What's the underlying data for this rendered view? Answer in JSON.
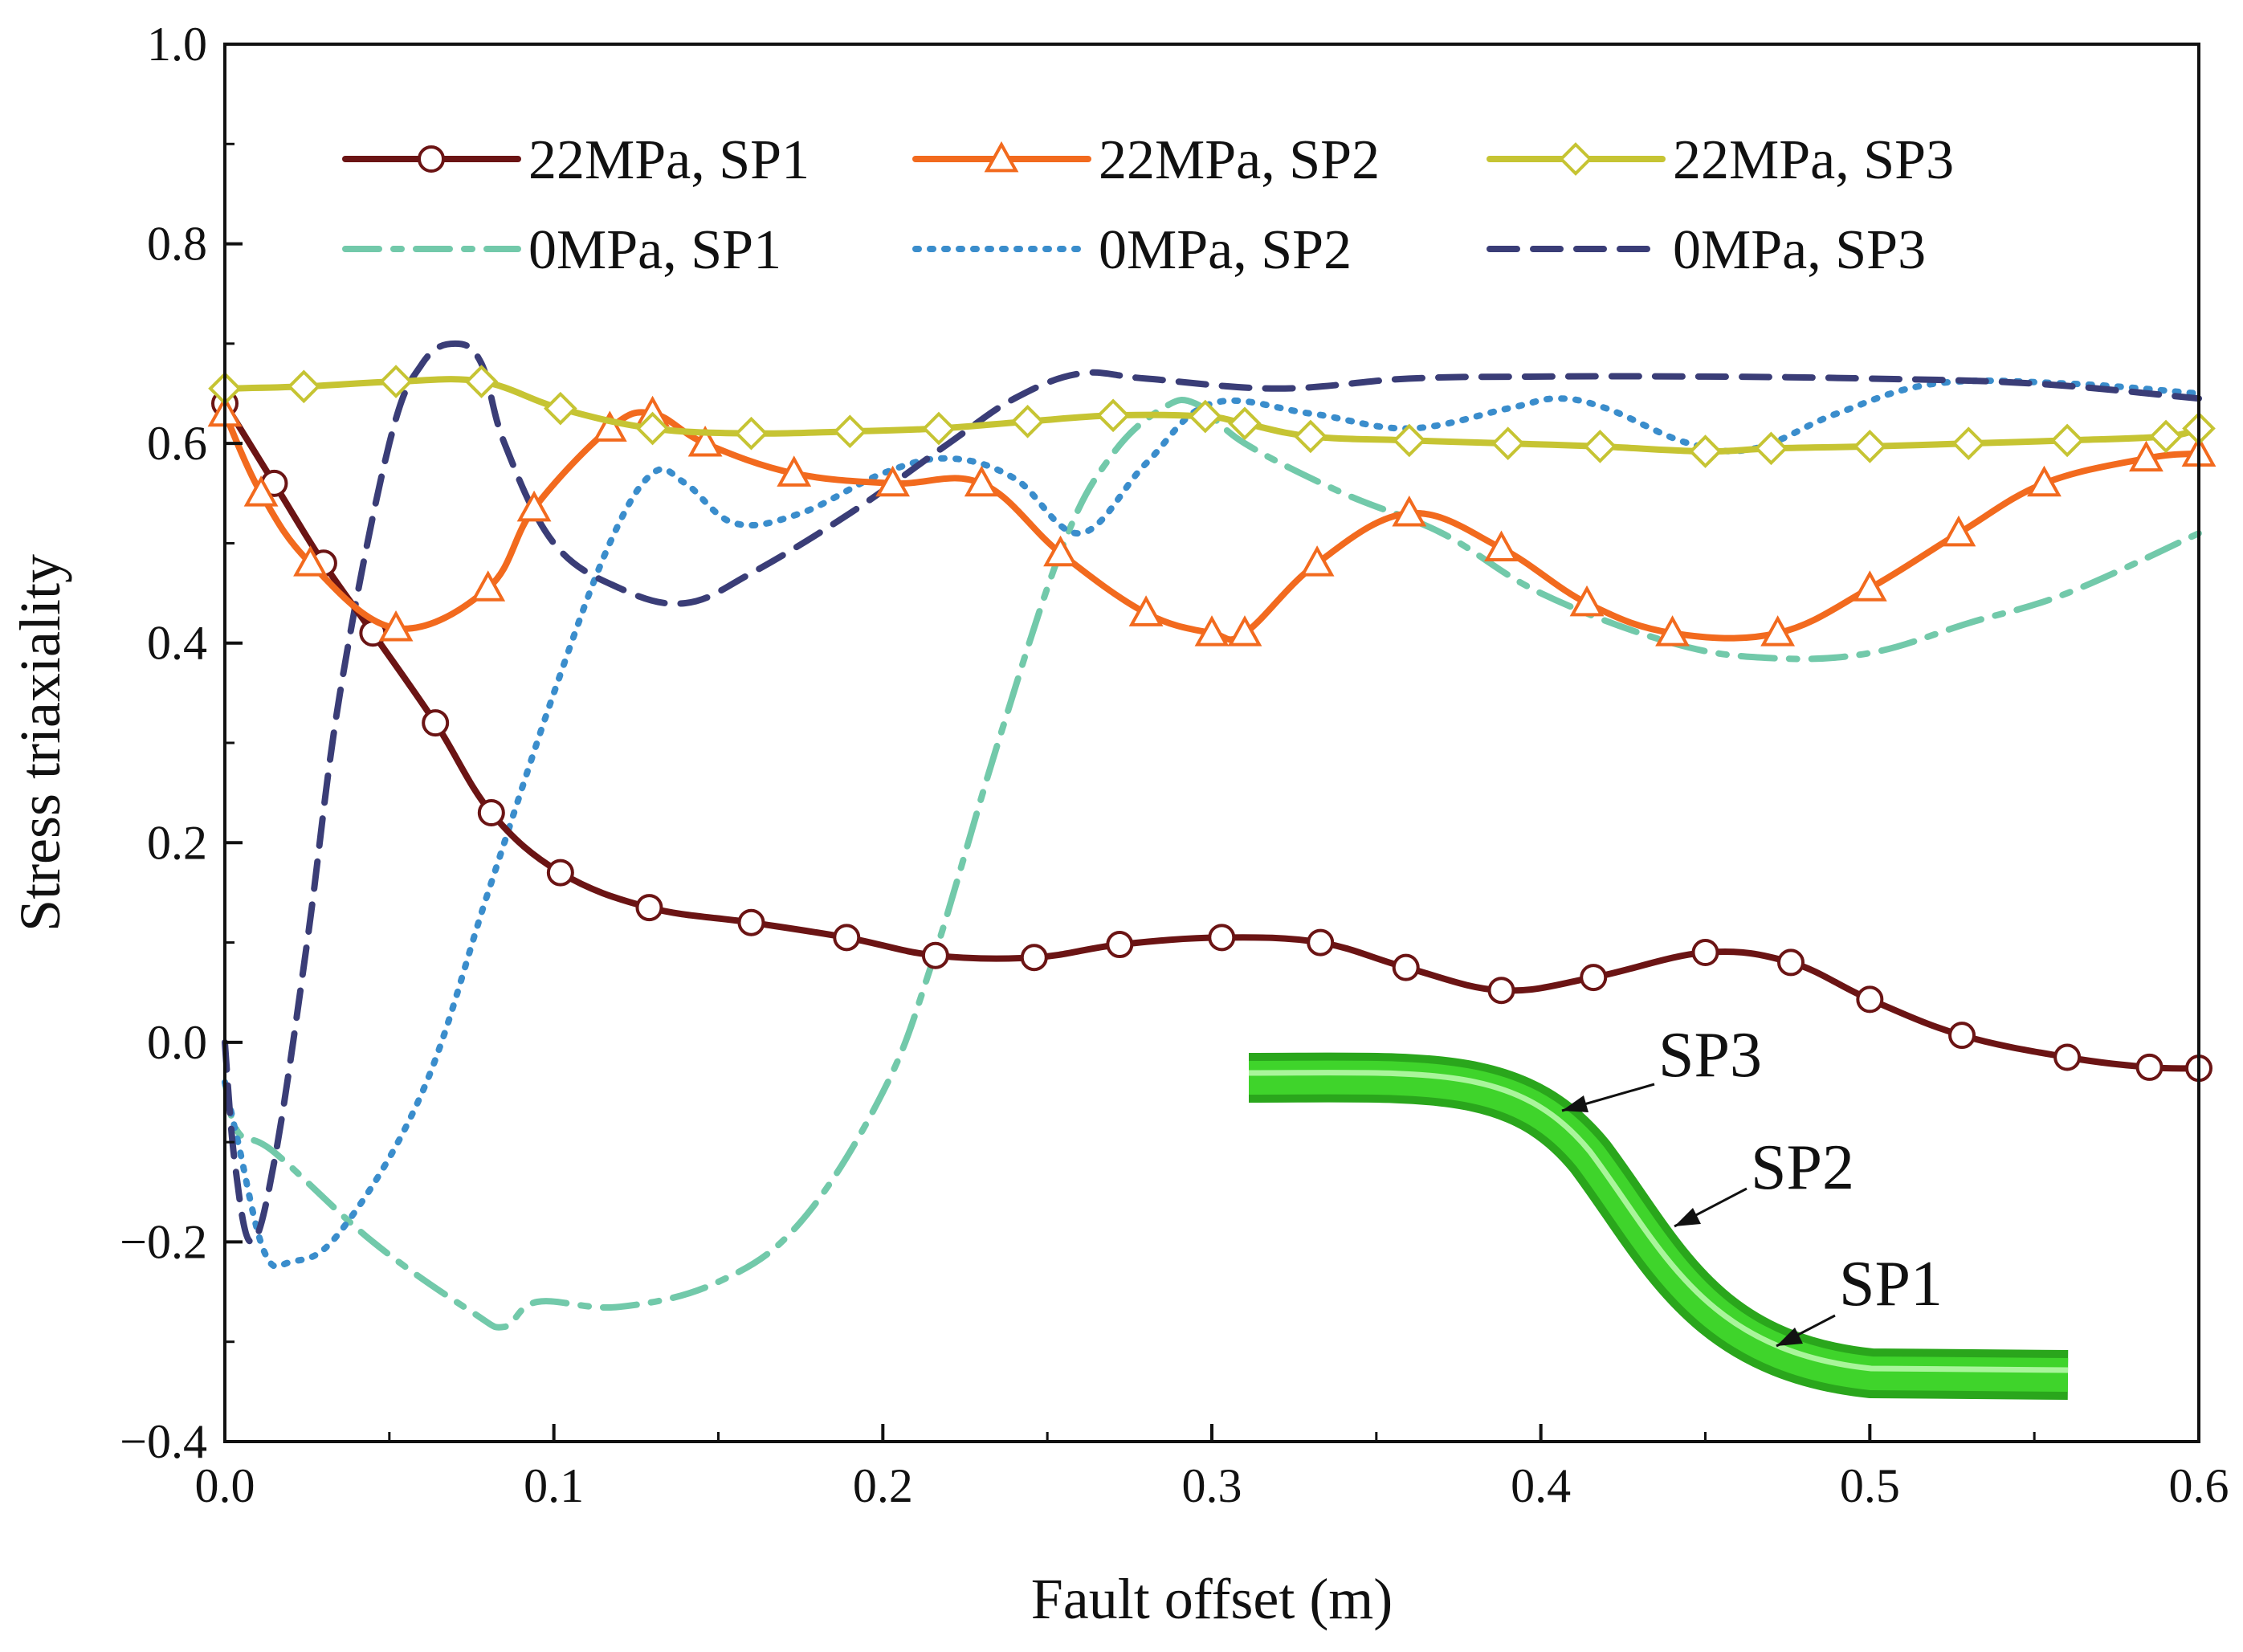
{
  "chart_data": {
    "type": "line",
    "xlabel": "Fault offset (m)",
    "ylabel": "Stress triaxiality",
    "xlim": [
      0.0,
      0.6
    ],
    "ylim": [
      -0.4,
      1.0
    ],
    "xticks": [
      "0.0",
      "0.1",
      "0.2",
      "0.3",
      "0.4",
      "0.5",
      "0.6"
    ],
    "yticks": [
      "−0.4",
      "−0.2",
      "0.0",
      "0.2",
      "0.4",
      "0.6",
      "0.8",
      "1.0"
    ],
    "grid": false,
    "legend_position": "top",
    "series": [
      {
        "name": "22MPa, SP1",
        "color": "#6b1414",
        "style": "solid",
        "marker": "circle",
        "x": [
          0.0,
          0.015,
          0.03,
          0.045,
          0.064,
          0.081,
          0.102,
          0.129,
          0.16,
          0.189,
          0.216,
          0.246,
          0.272,
          0.303,
          0.333,
          0.359,
          0.388,
          0.416,
          0.45,
          0.476,
          0.5,
          0.528,
          0.56,
          0.585,
          0.6
        ],
        "y": [
          0.64,
          0.56,
          0.48,
          0.41,
          0.32,
          0.23,
          0.17,
          0.135,
          0.12,
          0.105,
          0.087,
          0.085,
          0.098,
          0.105,
          0.1,
          0.075,
          0.052,
          0.065,
          0.09,
          0.08,
          0.043,
          0.007,
          -0.015,
          -0.025,
          -0.026
        ]
      },
      {
        "name": "22MPa, SP2",
        "color": "#f26a1e",
        "style": "solid",
        "marker": "triangle",
        "x": [
          0.0,
          0.011,
          0.026,
          0.052,
          0.08,
          0.094,
          0.117,
          0.13,
          0.146,
          0.173,
          0.203,
          0.23,
          0.254,
          0.28,
          0.3,
          0.31,
          0.332,
          0.36,
          0.388,
          0.414,
          0.44,
          0.472,
          0.5,
          0.527,
          0.553,
          0.584,
          0.6
        ],
        "y": [
          0.63,
          0.55,
          0.48,
          0.415,
          0.455,
          0.535,
          0.615,
          0.63,
          0.6,
          0.57,
          0.56,
          0.56,
          0.49,
          0.43,
          0.41,
          0.41,
          0.48,
          0.53,
          0.495,
          0.44,
          0.41,
          0.41,
          0.455,
          0.51,
          0.56,
          0.585,
          0.59
        ]
      },
      {
        "name": "22MPa, SP3",
        "color": "#c6c433",
        "style": "solid",
        "marker": "diamond",
        "x": [
          0.0,
          0.024,
          0.052,
          0.078,
          0.102,
          0.13,
          0.16,
          0.19,
          0.217,
          0.244,
          0.27,
          0.298,
          0.31,
          0.33,
          0.36,
          0.39,
          0.418,
          0.45,
          0.47,
          0.5,
          0.53,
          0.56,
          0.59,
          0.6
        ],
        "y": [
          0.655,
          0.657,
          0.662,
          0.662,
          0.635,
          0.615,
          0.61,
          0.612,
          0.615,
          0.622,
          0.628,
          0.627,
          0.62,
          0.607,
          0.603,
          0.6,
          0.597,
          0.592,
          0.595,
          0.597,
          0.6,
          0.603,
          0.607,
          0.615
        ]
      },
      {
        "name": "0MPa, SP1",
        "color": "#72c9aa",
        "style": "dash-dot",
        "marker": "none",
        "x": [
          0.0,
          0.004,
          0.015,
          0.045,
          0.075,
          0.085,
          0.095,
          0.12,
          0.15,
          0.175,
          0.2,
          0.215,
          0.235,
          0.255,
          0.27,
          0.285,
          0.295,
          0.31,
          0.34,
          0.37,
          0.4,
          0.44,
          0.47,
          0.5,
          0.53,
          0.56,
          0.6
        ],
        "y": [
          -0.04,
          -0.09,
          -0.11,
          -0.2,
          -0.27,
          -0.285,
          -0.26,
          -0.265,
          -0.24,
          -0.18,
          -0.05,
          0.08,
          0.3,
          0.5,
          0.59,
          0.635,
          0.64,
          0.6,
          0.55,
          0.51,
          0.45,
          0.4,
          0.385,
          0.39,
          0.42,
          0.45,
          0.51
        ]
      },
      {
        "name": "0MPa, SP2",
        "color": "#3a8dcc",
        "style": "dotted",
        "marker": "none",
        "x": [
          0.0,
          0.004,
          0.012,
          0.02,
          0.035,
          0.06,
          0.08,
          0.1,
          0.117,
          0.13,
          0.14,
          0.155,
          0.175,
          0.2,
          0.22,
          0.24,
          0.26,
          0.28,
          0.3,
          0.33,
          0.36,
          0.39,
          0.405,
          0.42,
          0.445,
          0.465,
          0.49,
          0.52,
          0.56,
          0.6
        ],
        "y": [
          -0.04,
          -0.1,
          -0.21,
          -0.22,
          -0.19,
          -0.05,
          0.15,
          0.35,
          0.5,
          0.57,
          0.56,
          0.52,
          0.53,
          0.57,
          0.585,
          0.565,
          0.51,
          0.58,
          0.64,
          0.63,
          0.615,
          0.635,
          0.645,
          0.635,
          0.6,
          0.595,
          0.63,
          0.66,
          0.66,
          0.65
        ]
      },
      {
        "name": "0MPa, SP3",
        "color": "#3a3d77",
        "style": "dashed",
        "marker": "none",
        "x": [
          0.0,
          0.003,
          0.008,
          0.015,
          0.025,
          0.035,
          0.05,
          0.06,
          0.07,
          0.078,
          0.085,
          0.1,
          0.12,
          0.14,
          0.16,
          0.19,
          0.22,
          0.24,
          0.26,
          0.28,
          0.32,
          0.36,
          0.4,
          0.45,
          0.5,
          0.55,
          0.6
        ],
        "y": [
          0.0,
          -0.12,
          -0.2,
          -0.12,
          0.1,
          0.35,
          0.6,
          0.68,
          0.7,
          0.68,
          0.6,
          0.5,
          0.455,
          0.44,
          0.47,
          0.53,
          0.6,
          0.645,
          0.67,
          0.665,
          0.655,
          0.665,
          0.667,
          0.667,
          0.665,
          0.66,
          0.645
        ]
      }
    ],
    "annotations": [
      "SP3",
      "SP2",
      "SP1"
    ]
  }
}
